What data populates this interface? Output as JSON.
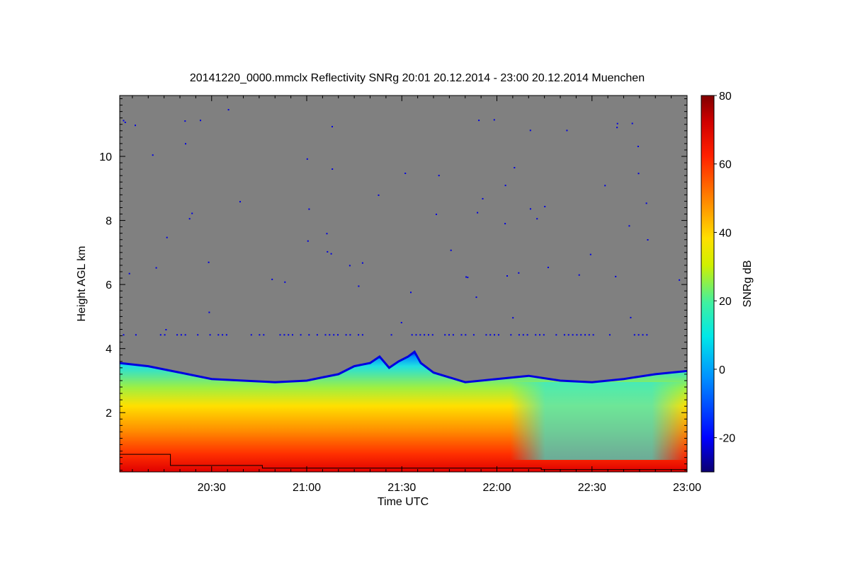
{
  "chart_data": {
    "type": "heatmap",
    "title": "20141220_0000.mmclx Reflectivity SNRg   20:01 20.12.2014 - 23:00 20.12.2014 Muenchen",
    "xlabel": "Time UTC",
    "ylabel": "Height AGL km",
    "colorbar_label": "SNRg dB",
    "x_ticks": [
      "20:30",
      "21:00",
      "21:30",
      "22:00",
      "22:30",
      "23:00"
    ],
    "x_tick_minutes": [
      30,
      60,
      90,
      120,
      150,
      180
    ],
    "xlim_minutes": [
      1,
      180
    ],
    "y_ticks": [
      "2",
      "4",
      "6",
      "8",
      "10"
    ],
    "y_tick_values": [
      2,
      4,
      6,
      8,
      10
    ],
    "ylim": [
      0.15,
      11.9
    ],
    "colorbar_ticks": [
      "-20",
      "0",
      "20",
      "40",
      "60",
      "80"
    ],
    "colorbar_tick_values": [
      -20,
      0,
      20,
      40,
      60,
      80
    ],
    "colorbar_range": [
      -30,
      80
    ],
    "no_signal_color": "#808080",
    "cloud_top_km": [
      [
        1,
        3.55
      ],
      [
        10,
        3.45
      ],
      [
        20,
        3.25
      ],
      [
        30,
        3.05
      ],
      [
        40,
        3.0
      ],
      [
        50,
        2.95
      ],
      [
        60,
        3.0
      ],
      [
        65,
        3.1
      ],
      [
        70,
        3.2
      ],
      [
        75,
        3.45
      ],
      [
        80,
        3.55
      ],
      [
        83,
        3.75
      ],
      [
        86,
        3.4
      ],
      [
        89,
        3.6
      ],
      [
        92,
        3.75
      ],
      [
        94,
        3.9
      ],
      [
        96,
        3.55
      ],
      [
        100,
        3.25
      ],
      [
        105,
        3.1
      ],
      [
        110,
        2.95
      ],
      [
        120,
        3.05
      ],
      [
        130,
        3.15
      ],
      [
        140,
        3.0
      ],
      [
        150,
        2.95
      ],
      [
        160,
        3.05
      ],
      [
        170,
        3.2
      ],
      [
        180,
        3.3
      ]
    ],
    "sensitivity_line_km": [
      [
        1,
        0.7
      ],
      [
        17,
        0.7
      ],
      [
        17,
        0.35
      ],
      [
        46,
        0.35
      ],
      [
        46,
        0.27
      ],
      [
        134,
        0.27
      ],
      [
        134,
        0.22
      ],
      [
        180,
        0.22
      ]
    ]
  }
}
